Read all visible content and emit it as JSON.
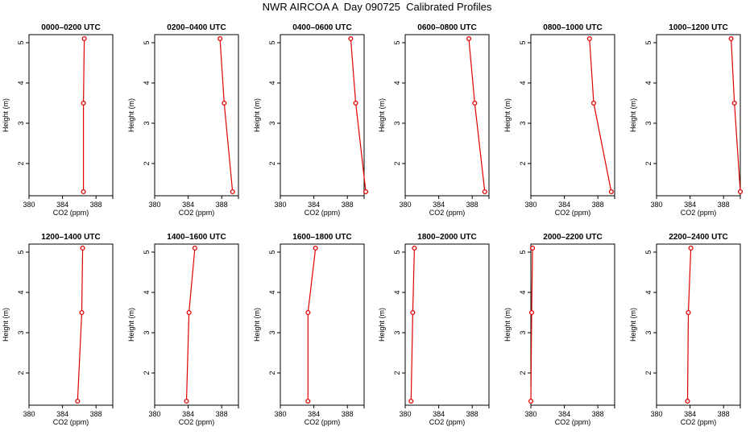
{
  "title": "NWR AIRCOA A  Day 090725  Calibrated Profiles",
  "chart_data": [
    {
      "type": "line",
      "title": "0000–0200 UTC",
      "xlabel": "CO2 (ppm)",
      "ylabel": "Height (m)",
      "xlim": [
        380,
        390
      ],
      "ylim": [
        1.2,
        5.2
      ],
      "xticks": [
        "380",
        "384",
        "388"
      ],
      "yticks": [
        "2",
        "3",
        "4",
        "5"
      ],
      "color": "#e00000",
      "series": [
        {
          "x": [
            386.6,
            386.5,
            386.5
          ],
          "y": [
            5.1,
            3.5,
            1.3
          ]
        }
      ]
    },
    {
      "type": "line",
      "title": "0200–0400 UTC",
      "xlabel": "CO2 (ppm)",
      "ylabel": "Height (m)",
      "xlim": [
        380,
        390
      ],
      "ylim": [
        1.2,
        5.2
      ],
      "xticks": [
        "380",
        "384",
        "388"
      ],
      "yticks": [
        "2",
        "3",
        "4",
        "5"
      ],
      "color": "#e00000",
      "series": [
        {
          "x": [
            387.8,
            388.3,
            389.3
          ],
          "y": [
            5.1,
            3.5,
            1.3
          ]
        }
      ]
    },
    {
      "type": "line",
      "title": "0400–0600 UTC",
      "xlabel": "CO2 (ppm)",
      "ylabel": "Height (m)",
      "xlim": [
        380,
        390
      ],
      "ylim": [
        1.2,
        5.2
      ],
      "xticks": [
        "380",
        "384",
        "388"
      ],
      "yticks": [
        "2",
        "3",
        "4",
        "5"
      ],
      "color": "#e00000",
      "series": [
        {
          "x": [
            388.4,
            389.0,
            390.2
          ],
          "y": [
            5.1,
            3.5,
            1.3
          ]
        }
      ]
    },
    {
      "type": "line",
      "title": "0600–0800 UTC",
      "xlabel": "CO2 (ppm)",
      "ylabel": "Height (m)",
      "xlim": [
        380,
        390
      ],
      "ylim": [
        1.2,
        5.2
      ],
      "xticks": [
        "380",
        "384",
        "388"
      ],
      "yticks": [
        "2",
        "3",
        "4",
        "5"
      ],
      "color": "#e00000",
      "series": [
        {
          "x": [
            387.6,
            388.3,
            389.5
          ],
          "y": [
            5.1,
            3.5,
            1.3
          ]
        }
      ]
    },
    {
      "type": "line",
      "title": "0800–1000 UTC",
      "xlabel": "CO2 (ppm)",
      "ylabel": "Height (m)",
      "xlim": [
        380,
        390
      ],
      "ylim": [
        1.2,
        5.2
      ],
      "xticks": [
        "380",
        "384",
        "388"
      ],
      "yticks": [
        "2",
        "3",
        "4",
        "5"
      ],
      "color": "#e00000",
      "series": [
        {
          "x": [
            387.0,
            387.5,
            389.6
          ],
          "y": [
            5.1,
            3.5,
            1.3
          ]
        }
      ]
    },
    {
      "type": "line",
      "title": "1000–1200 UTC",
      "xlabel": "CO2 (ppm)",
      "ylabel": "Height (m)",
      "xlim": [
        380,
        390
      ],
      "ylim": [
        1.2,
        5.2
      ],
      "xticks": [
        "380",
        "384",
        "388"
      ],
      "yticks": [
        "2",
        "3",
        "4",
        "5"
      ],
      "color": "#e00000",
      "series": [
        {
          "x": [
            388.9,
            389.3,
            390.0
          ],
          "y": [
            5.1,
            3.5,
            1.3
          ]
        }
      ]
    },
    {
      "type": "line",
      "title": "1200–1400 UTC",
      "xlabel": "CO2 (ppm)",
      "ylabel": "Height (m)",
      "xlim": [
        380,
        390
      ],
      "ylim": [
        1.2,
        5.2
      ],
      "xticks": [
        "380",
        "384",
        "388"
      ],
      "yticks": [
        "2",
        "3",
        "4",
        "5"
      ],
      "color": "#e00000",
      "series": [
        {
          "x": [
            386.4,
            386.3,
            385.8
          ],
          "y": [
            5.1,
            3.5,
            1.3
          ]
        }
      ]
    },
    {
      "type": "line",
      "title": "1400–1600 UTC",
      "xlabel": "CO2 (ppm)",
      "ylabel": "Height (m)",
      "xlim": [
        380,
        390
      ],
      "ylim": [
        1.2,
        5.2
      ],
      "xticks": [
        "380",
        "384",
        "388"
      ],
      "yticks": [
        "2",
        "3",
        "4",
        "5"
      ],
      "color": "#e00000",
      "series": [
        {
          "x": [
            384.8,
            384.1,
            383.8
          ],
          "y": [
            5.1,
            3.5,
            1.3
          ]
        }
      ]
    },
    {
      "type": "line",
      "title": "1600–1800 UTC",
      "xlabel": "CO2 (ppm)",
      "ylabel": "Height (m)",
      "xlim": [
        380,
        390
      ],
      "ylim": [
        1.2,
        5.2
      ],
      "xticks": [
        "380",
        "384",
        "388"
      ],
      "yticks": [
        "2",
        "3",
        "4",
        "5"
      ],
      "color": "#e00000",
      "series": [
        {
          "x": [
            384.2,
            383.3,
            383.3
          ],
          "y": [
            5.1,
            3.5,
            1.3
          ]
        }
      ]
    },
    {
      "type": "line",
      "title": "1800–2000 UTC",
      "xlabel": "CO2 (ppm)",
      "ylabel": "Height (m)",
      "xlim": [
        380,
        390
      ],
      "ylim": [
        1.2,
        5.2
      ],
      "xticks": [
        "380",
        "384",
        "388"
      ],
      "yticks": [
        "2",
        "3",
        "4",
        "5"
      ],
      "color": "#e00000",
      "series": [
        {
          "x": [
            381.1,
            380.9,
            380.7
          ],
          "y": [
            5.1,
            3.5,
            1.3
          ]
        }
      ]
    },
    {
      "type": "line",
      "title": "2000–2200 UTC",
      "xlabel": "CO2 (ppm)",
      "ylabel": "Height (m)",
      "xlim": [
        380,
        390
      ],
      "ylim": [
        1.2,
        5.2
      ],
      "xticks": [
        "380",
        "384",
        "388"
      ],
      "yticks": [
        "2",
        "3",
        "4",
        "5"
      ],
      "color": "#e00000",
      "series": [
        {
          "x": [
            380.2,
            380.1,
            380.0
          ],
          "y": [
            5.1,
            3.5,
            1.3
          ]
        }
      ]
    },
    {
      "type": "line",
      "title": "2200–2400 UTC",
      "xlabel": "CO2 (ppm)",
      "ylabel": "Height (m)",
      "xlim": [
        380,
        390
      ],
      "ylim": [
        1.2,
        5.2
      ],
      "xticks": [
        "380",
        "384",
        "388"
      ],
      "yticks": [
        "2",
        "3",
        "4",
        "5"
      ],
      "color": "#e00000",
      "series": [
        {
          "x": [
            384.1,
            383.8,
            383.7
          ],
          "y": [
            5.1,
            3.5,
            1.3
          ]
        }
      ]
    }
  ]
}
